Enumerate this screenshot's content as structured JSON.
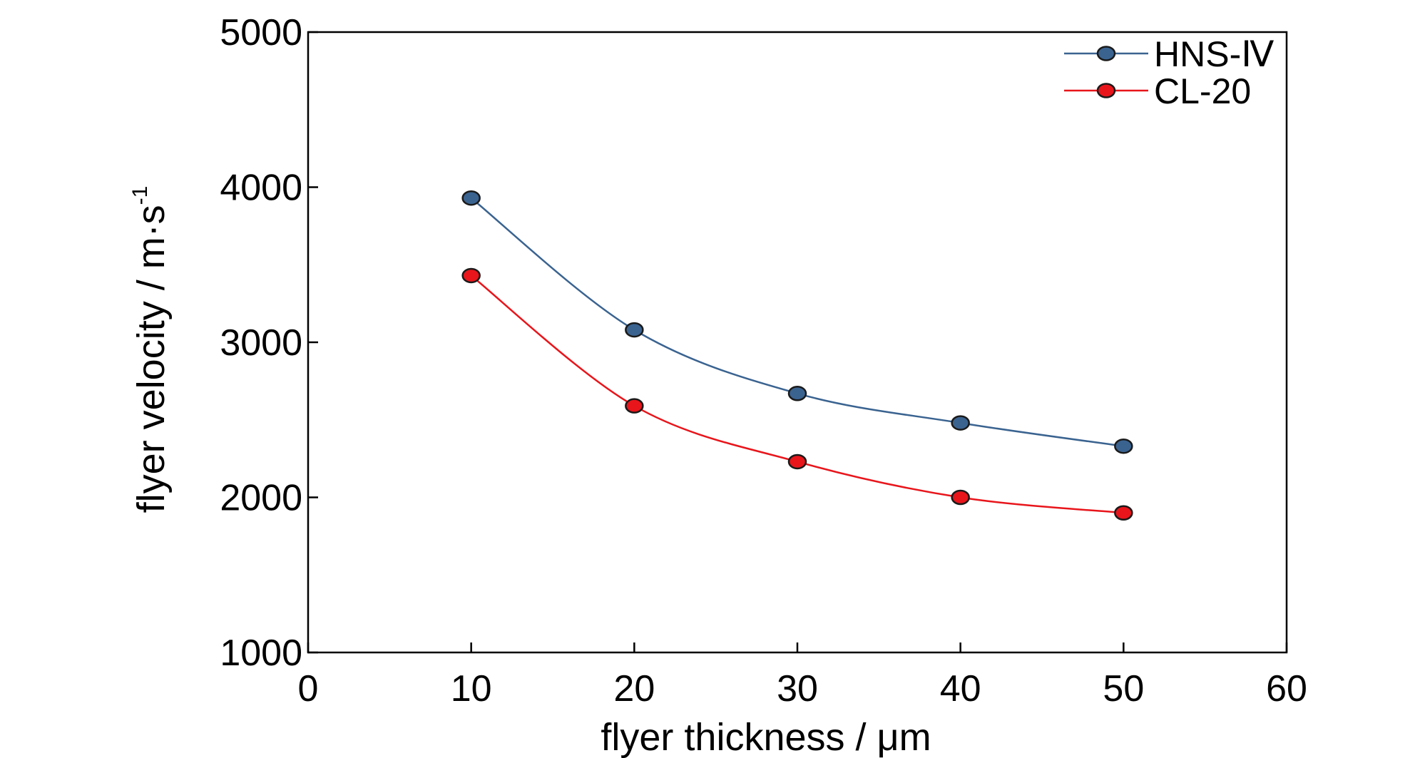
{
  "chart_data": {
    "type": "line",
    "xlabel": "flyer thickness / μm",
    "ylabel_main": "flyer velocity / m·s",
    "ylabel_exponent": "-1",
    "xlim": [
      0,
      60
    ],
    "ylim": [
      1000,
      5000
    ],
    "xticks": [
      "0",
      "10",
      "20",
      "30",
      "40",
      "50",
      "60"
    ],
    "yticks": [
      "1000",
      "2000",
      "3000",
      "4000",
      "5000"
    ],
    "grid": false,
    "legend_position": "top-right",
    "x": [
      10,
      20,
      30,
      40,
      50
    ],
    "series": [
      {
        "name": "HNS-Ⅳ",
        "color": "#3a6390",
        "values": [
          3930,
          3080,
          2670,
          2480,
          2330
        ]
      },
      {
        "name": "CL-20",
        "color": "#e8151b",
        "values": [
          3430,
          2590,
          2230,
          2000,
          1900
        ]
      }
    ]
  }
}
